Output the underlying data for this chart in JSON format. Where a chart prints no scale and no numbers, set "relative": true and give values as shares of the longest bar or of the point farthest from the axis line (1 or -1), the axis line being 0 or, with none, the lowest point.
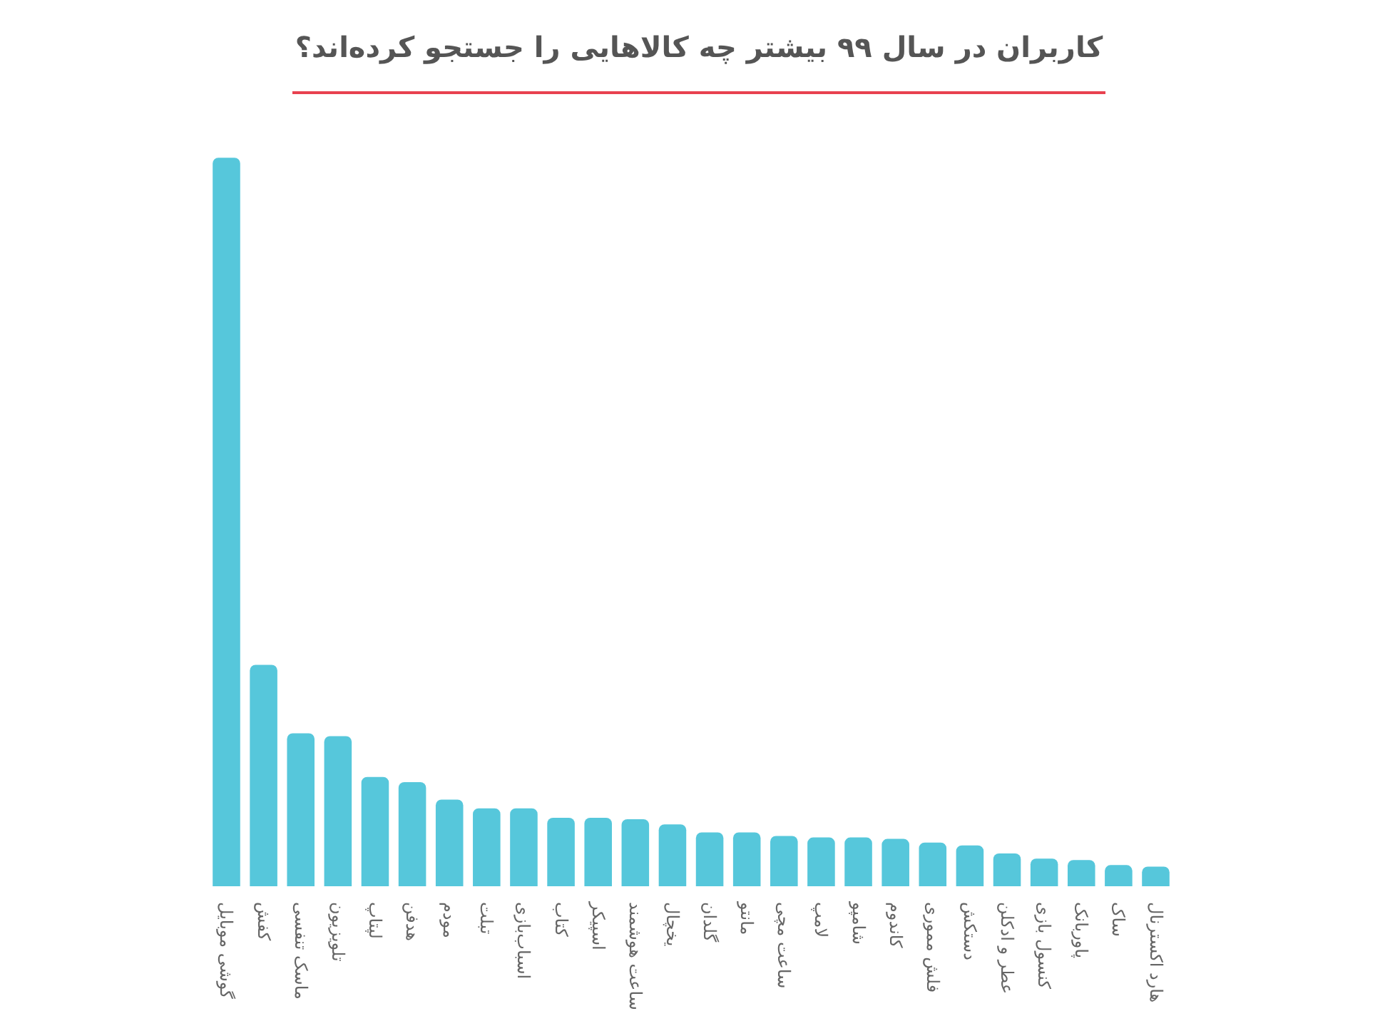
{
  "chart_data": {
    "type": "bar",
    "title": "کاربران در سال ۹۹ بیشتر چه کالاهایی را جستجو کرده‌اند؟",
    "relative": true,
    "color": "#56c7db",
    "categories": [
      "گوشی موبایل",
      "کفش",
      "ماسک تنفسی",
      "تلویزیون",
      "لپتاپ",
      "هدفن",
      "مودم",
      "تبلت",
      "اسباب‌بازی",
      "کتاب",
      "اسپیکر",
      "ساعت هوشمند",
      "یخچال",
      "گلدان",
      "مانتو",
      "ساعت مچی",
      "لامپ",
      "شامپو",
      "کاندوم",
      "فلش مموری",
      "دستکش",
      "عطر و ادکلن",
      "کنسول بازی",
      "پاوربانک",
      "ساک",
      "هارد اکسترنال"
    ],
    "values": [
      1,
      0.304,
      0.21,
      0.206,
      0.15,
      0.143,
      0.119,
      0.107,
      0.107,
      0.094,
      0.094,
      0.092,
      0.085,
      0.074,
      0.074,
      0.069,
      0.067,
      0.067,
      0.065,
      0.06,
      0.056,
      0.045,
      0.038,
      0.036,
      0.029,
      0.027
    ]
  }
}
